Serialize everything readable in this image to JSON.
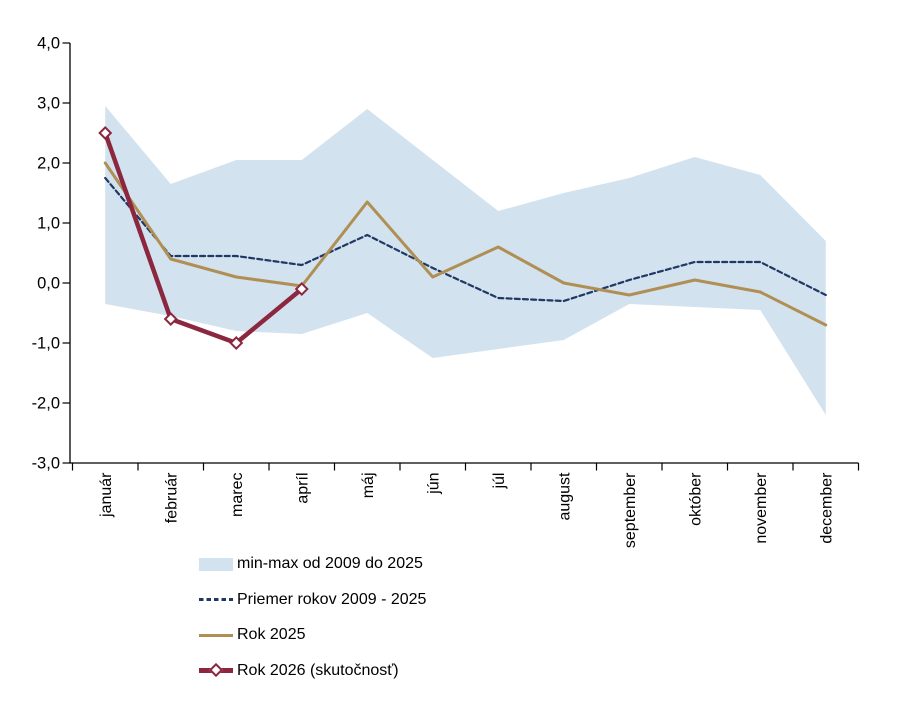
{
  "chart_data": {
    "type": "line",
    "title": "",
    "xlabel": "",
    "ylabel": "",
    "grid": false,
    "legend_position": "bottom-left",
    "categories": [
      "január",
      "február",
      "marec",
      "apríl",
      "máj",
      "jún",
      "júl",
      "august",
      "september",
      "október",
      "november",
      "december"
    ],
    "y_axis": {
      "min": -3.0,
      "max": 4.0,
      "tick_values": [
        4,
        3,
        2,
        1,
        0,
        -1,
        -2,
        -3
      ],
      "tick_labels": [
        "4,0",
        "3,0",
        "2,0",
        "1,0",
        "0,0",
        "-1,0",
        "-2,0",
        "-3,0"
      ]
    },
    "band": {
      "name": "min-max od 2009 do 2025",
      "color": "#d2e2ee",
      "max": [
        2.95,
        1.65,
        2.05,
        2.05,
        2.9,
        2.05,
        1.2,
        1.5,
        1.75,
        2.1,
        1.8,
        0.7
      ],
      "min": [
        -0.35,
        -0.55,
        -0.8,
        -0.85,
        -0.5,
        -1.25,
        -1.1,
        -0.95,
        -0.35,
        -0.4,
        -0.45,
        -2.2
      ]
    },
    "series": [
      {
        "name": "Priemer rokov 2009 - 2025",
        "style": "dashed",
        "color": "#1f3864",
        "values": [
          1.75,
          0.45,
          0.45,
          0.3,
          0.8,
          0.25,
          -0.25,
          -0.3,
          0.05,
          0.35,
          0.35,
          -0.2
        ]
      },
      {
        "name": "Rok 2025",
        "style": "solid",
        "color": "#b08f55",
        "values": [
          2.0,
          0.4,
          0.1,
          -0.05,
          1.35,
          0.1,
          0.6,
          0.0,
          -0.2,
          0.05,
          -0.15,
          -0.7
        ]
      },
      {
        "name": "Rok 2026 (skutočnosť)",
        "style": "solid-diamond",
        "color": "#8c2740",
        "marker": "diamond",
        "marker_fill": "#ffffff",
        "values": [
          2.5,
          -0.6,
          -1.0,
          -0.1,
          null,
          null,
          null,
          null,
          null,
          null,
          null,
          null
        ]
      }
    ],
    "legend": [
      {
        "label": "min-max od 2009 do 2025",
        "type": "band"
      },
      {
        "label": "Priemer rokov 2009 - 2025",
        "type": "dashed-line"
      },
      {
        "label": "Rok 2025",
        "type": "line"
      },
      {
        "label": "Rok 2026 (skutočnosť)",
        "type": "line-diamond"
      }
    ]
  }
}
